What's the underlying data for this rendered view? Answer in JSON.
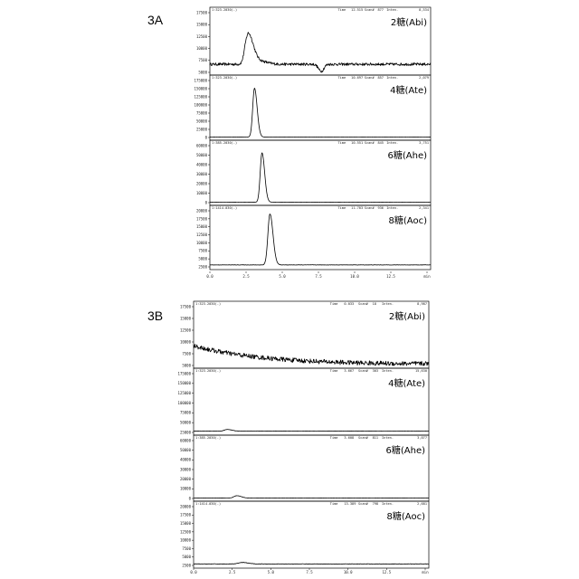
{
  "chart_data": [
    {
      "type": "line",
      "figure_label": "3A",
      "xlim": [
        0,
        25
      ],
      "x_ticks": [
        "0.0",
        "2.5",
        "5.0",
        "7.5",
        "10.0",
        "12.5",
        "min"
      ],
      "panels": [
        {
          "label": "2糖(Abi)",
          "header": {
            "left": "1:323.2030(-)",
            "time": "Time",
            "time_val": "12.515",
            "scan": "Scan#",
            "scan_val": "877",
            "inten": "Inten.",
            "inten_val": "8,534"
          },
          "ylim": [
            5000,
            17500
          ],
          "y_ticks": [
            "17500",
            "15000",
            "12500",
            "10000",
            "7500",
            "5000"
          ],
          "baseline": 6700,
          "noise": 280,
          "peaks": [
            {
              "x": 4.4,
              "h": 6000,
              "w": 0.35
            },
            {
              "x": 4.0,
              "h": 1000,
              "w": 0.2
            },
            {
              "x": 5.5,
              "h": 700,
              "w": 0.6
            }
          ],
          "dips": [
            {
              "x": 12.6,
              "h": 1500,
              "w": 0.3
            }
          ]
        },
        {
          "label": "4糖(Ate)",
          "header": {
            "left": "1:323.2030(-)",
            "time": "Time",
            "time_val": "10.697",
            "scan": "Scan#",
            "scan_val": "857",
            "inten": "Inten.",
            "inten_val": "2,079"
          },
          "ylim": [
            0,
            175000
          ],
          "y_ticks": [
            "175000",
            "150000",
            "125000",
            "100000",
            "75000",
            "50000",
            "25000",
            "0"
          ],
          "baseline": 1500,
          "noise": 150,
          "peaks": [
            {
              "x": 5.05,
              "h": 150000,
              "w": 0.2
            }
          ],
          "dips": []
        },
        {
          "label": "6糖(Ahe)",
          "header": {
            "left": "1:385.2030(-)",
            "time": "Time",
            "time_val": "10.551",
            "scan": "Scan#",
            "scan_val": "845",
            "inten": "Inten.",
            "inten_val": "3,751"
          },
          "ylim": [
            0,
            60000
          ],
          "y_ticks": [
            "60000",
            "50000",
            "40000",
            "30000",
            "20000",
            "10000",
            "0"
          ],
          "baseline": 500,
          "noise": 80,
          "peaks": [
            {
              "x": 5.9,
              "h": 52000,
              "w": 0.2
            }
          ],
          "dips": []
        },
        {
          "label": "8糖(Aoc)",
          "header": {
            "left": "1:1414.030(-)",
            "time": "Time",
            "time_val": "11.703",
            "scan": "Scan#",
            "scan_val": "936",
            "inten": "Inten.",
            "inten_val": "2,341"
          },
          "ylim": [
            0,
            20000
          ],
          "y_ticks": [
            "20000",
            "17500",
            "15000",
            "12500",
            "10000",
            "7500",
            "5000",
            "2500"
          ],
          "baseline": 700,
          "noise": 60,
          "peaks": [
            {
              "x": 6.8,
              "h": 18200,
              "w": 0.23
            }
          ],
          "dips": []
        }
      ]
    },
    {
      "type": "line",
      "figure_label": "3B",
      "xlim": [
        0,
        25
      ],
      "x_ticks": [
        "0.0",
        "2.5",
        "5.0",
        "7.5",
        "10.0",
        "12.5",
        "min"
      ],
      "panels": [
        {
          "label": "2糖(Abi)",
          "header": {
            "left": "1:323.2030(-)",
            "time": "Time",
            "time_val": "0.033",
            "scan": "Scan#",
            "scan_val": "18",
            "inten": "Inten.",
            "inten_val": "8,987"
          },
          "ylim": [
            5000,
            17500
          ],
          "y_ticks": [
            "17500",
            "15000",
            "12500",
            "10000",
            "7500",
            "5000"
          ],
          "baseline": 7400,
          "noise": 500,
          "slope_from": 9200,
          "slope_to": 5400,
          "peaks": [],
          "dips": []
        },
        {
          "label": "4糖(Ate)",
          "header": {
            "left": "1:323.2030(-)",
            "time": "Time",
            "time_val": "3.667",
            "scan": "Scan#",
            "scan_val": "303",
            "inten": "Inten.",
            "inten_val": "15,630"
          },
          "ylim": [
            0,
            175000
          ],
          "y_ticks": [
            "175000",
            "150000",
            "125000",
            "100000",
            "75000",
            "50000",
            "25000"
          ],
          "baseline": 4000,
          "noise": 500,
          "peaks": [
            {
              "x": 3.6,
              "h": 5000,
              "w": 0.3
            }
          ],
          "dips": []
        },
        {
          "label": "6糖(Ahe)",
          "header": {
            "left": "1:385.2030(-)",
            "time": "Time",
            "time_val": "3.608",
            "scan": "Scan#",
            "scan_val": "811",
            "inten": "Inten.",
            "inten_val": "3,077"
          },
          "ylim": [
            0,
            60000
          ],
          "y_ticks": [
            "60000",
            "50000",
            "40000",
            "30000",
            "20000",
            "10000",
            "0"
          ],
          "baseline": 500,
          "noise": 100,
          "peaks": [
            {
              "x": 4.6,
              "h": 2400,
              "w": 0.3
            }
          ],
          "dips": []
        },
        {
          "label": "8糖(Aoc)",
          "header": {
            "left": "1:1414.030(-)",
            "time": "Time",
            "time_val": "13.389",
            "scan": "Scan#",
            "scan_val": "798",
            "inten": "Inten.",
            "inten_val": "2,681"
          },
          "ylim": [
            0,
            20000
          ],
          "y_ticks": [
            "20000",
            "17500",
            "15000",
            "12500",
            "10000",
            "7500",
            "5000",
            "2500"
          ],
          "baseline": 500,
          "noise": 80,
          "peaks": [
            {
              "x": 5.2,
              "h": 500,
              "w": 0.4
            }
          ],
          "dips": []
        }
      ]
    }
  ]
}
